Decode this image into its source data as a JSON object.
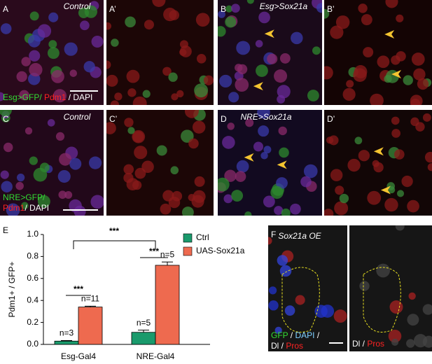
{
  "panels": [
    {
      "label": "A",
      "title": "Control"
    },
    {
      "label": "A’"
    },
    {
      "label": "B",
      "title": "Esg>Sox21a"
    },
    {
      "label": "B’"
    },
    {
      "label": "C",
      "title": "Control"
    },
    {
      "label": "C’"
    },
    {
      "label": "D",
      "title": "NRE>Sox21a"
    },
    {
      "label": "D’"
    },
    {
      "label": "F",
      "title": "Sox21a OE"
    }
  ],
  "stain_labels": {
    "A": [
      [
        {
          "text": "Esg>GFP/",
          "color": "#33dd33"
        },
        {
          "text": " Pdm1",
          "color": "#ff2222"
        },
        {
          "text": " / DAPI",
          "color": "#ffffff"
        }
      ]
    ],
    "C": [
      [
        {
          "text": "NRE>GFP/",
          "color": "#33dd33"
        }
      ],
      [
        {
          "text": "Pdm1",
          "color": "#ff2222"
        },
        {
          "text": "/ DAPI",
          "color": "#ffffff"
        }
      ]
    ],
    "F": [
      [
        {
          "text": "GFP",
          "color": "#33dd33"
        },
        {
          "text": " / ",
          "color": "#ffffff"
        },
        {
          "text": "DAPI",
          "color": "#7fd0ff"
        },
        {
          "text": " /",
          "color": "#ffffff"
        }
      ],
      [
        {
          "text": "Dl / ",
          "color": "#ffffff"
        },
        {
          "text": "Pros",
          "color": "#ff2222"
        }
      ]
    ],
    "F’": [
      [
        {
          "text": "Dl / ",
          "color": "#ffffff"
        },
        {
          "text": "Pros",
          "color": "#ff2222"
        }
      ]
    ]
  },
  "chart_data": {
    "type": "bar",
    "panel_label": "E",
    "y_label": "Pdm1+ / GFP+",
    "categories": [
      "Esg-Gal4",
      "NRE-Gal4"
    ],
    "series": [
      {
        "name": "Ctrl",
        "color": "#1a9a6c",
        "values": [
          0.03,
          0.11
        ],
        "errors": [
          0.005,
          0.02
        ],
        "n_labels": [
          "n=3",
          "n=5"
        ]
      },
      {
        "name": "UAS-Sox21a",
        "color": "#ee6a4f",
        "values": [
          0.34,
          0.72
        ],
        "errors": [
          0.008,
          0.03
        ],
        "n_labels": [
          "n=11",
          "n=5"
        ]
      }
    ],
    "ylim": [
      0,
      1.0
    ],
    "yticks": [
      {
        "value": 0,
        "label": "0.0"
      },
      {
        "value": 0.2,
        "label": "0.2"
      },
      {
        "value": 0.4,
        "label": "0.4"
      },
      {
        "value": 0.6,
        "label": "0.6"
      },
      {
        "value": 0.8,
        "label": "0.8"
      },
      {
        "value": 1.0,
        "label": "1.0"
      }
    ],
    "significance": [
      "***",
      "***",
      "***"
    ],
    "legend": "top-right"
  }
}
